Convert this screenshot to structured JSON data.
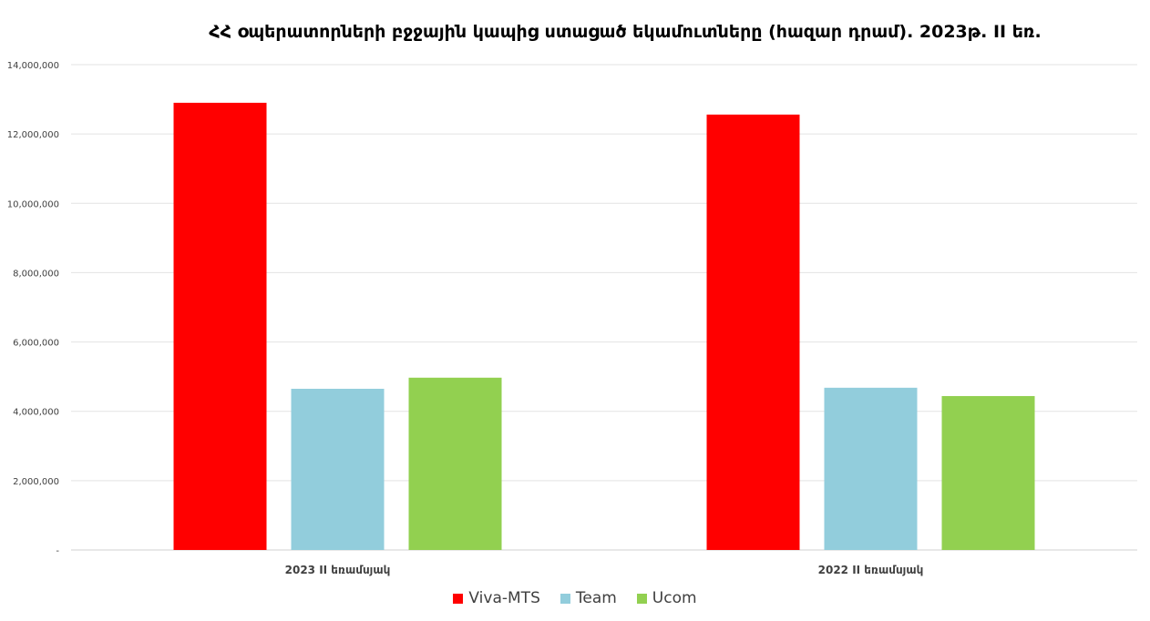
{
  "chart_data": {
    "type": "bar",
    "title": "ՀՀ օպերատորների բջջային կապից ստացած եկամուտները (հազար դրամ). 2023թ. II եռ.",
    "xlabel": "",
    "ylabel": "",
    "categories": [
      "2023 II եռամսյակ",
      "2022 II եռամսյակ"
    ],
    "series": [
      {
        "name": "Viva-MTS",
        "color": "#ff0000",
        "values": [
          12900000,
          12560000
        ]
      },
      {
        "name": "Team",
        "color": "#92cddc",
        "values": [
          4650000,
          4680000
        ]
      },
      {
        "name": "Ucom",
        "color": "#92d050",
        "values": [
          4970000,
          4440000
        ]
      }
    ],
    "ylim": [
      0,
      14000000
    ],
    "yticks": [
      0,
      2000000,
      4000000,
      6000000,
      8000000,
      10000000,
      12000000,
      14000000
    ],
    "ytick_labels": [
      "-",
      "2,000,000",
      "4,000,000",
      "6,000,000",
      "8,000,000",
      "10,000,000",
      "12,000,000",
      "14,000,000"
    ],
    "grid": true,
    "legend_position": "bottom"
  }
}
